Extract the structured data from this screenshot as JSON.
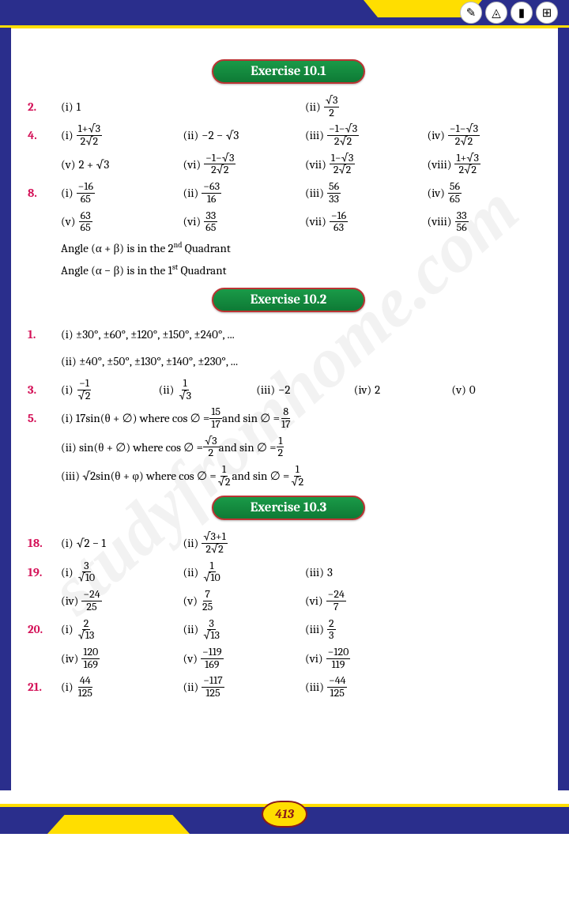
{
  "page_number": "413",
  "watermark": "studyfromhome.com",
  "top_icons": [
    "✏️",
    "📐",
    "🧮",
    "🧮"
  ],
  "sections": [
    {
      "title": "Exercise 10.1",
      "rows": [
        {
          "n": "2.",
          "cols": 2,
          "items": [
            [
              "(i)",
              "1"
            ],
            [
              "(ii)",
              {
                "frac": [
                  "√3",
                  "2"
                ]
              }
            ]
          ]
        },
        {
          "n": "4.",
          "cols": 4,
          "items": [
            [
              "(i)",
              {
                "frac": [
                  "1+√3",
                  "2√2"
                ]
              }
            ],
            [
              "(ii)",
              "−2 − √3"
            ],
            [
              "(iii)",
              {
                "frac": [
                  "−1−√3",
                  "2√2"
                ]
              }
            ],
            [
              "(iv)",
              {
                "frac": [
                  "−1−√3",
                  "2√2"
                ]
              }
            ],
            [
              "(v)",
              "2 + √3"
            ],
            [
              "(vi)",
              {
                "frac": [
                  "−1−√3",
                  "2√2"
                ]
              }
            ],
            [
              "(vii)",
              {
                "frac": [
                  "1−√3",
                  "2√2"
                ]
              }
            ],
            [
              "(viii)",
              {
                "frac": [
                  "1+√3",
                  "2√2"
                ]
              }
            ]
          ]
        },
        {
          "n": "8.",
          "cols": 4,
          "items": [
            [
              "(i)",
              {
                "frac": [
                  "−16",
                  "65"
                ]
              }
            ],
            [
              "(ii)",
              {
                "frac": [
                  "−63",
                  "16"
                ]
              }
            ],
            [
              "(iii)",
              {
                "frac": [
                  "56",
                  "33"
                ]
              }
            ],
            [
              "(iv)",
              {
                "frac": [
                  "56",
                  "65"
                ]
              }
            ],
            [
              "(v)",
              {
                "frac": [
                  "63",
                  "65"
                ]
              }
            ],
            [
              "(vi)",
              {
                "frac": [
                  "33",
                  "65"
                ]
              }
            ],
            [
              "(vii)",
              {
                "frac": [
                  "−16",
                  "63"
                ]
              }
            ],
            [
              "(viii)",
              {
                "frac": [
                  "33",
                  "56"
                ]
              }
            ]
          ]
        }
      ],
      "notes": [
        "Angle (α + β) is in the 2<sup>nd</sup> Quadrant",
        "Angle (α − β) is in the 1<sup>st</sup> Quadrant"
      ]
    },
    {
      "title": "Exercise 10.2",
      "rows": [
        {
          "n": "1.",
          "cols": 1,
          "items": [
            [
              "",
              "(i) ±30°, ±60°, ±120°, ±150°, ±240°, ..."
            ],
            [
              "",
              "(ii) ±40°, ±50°, ±130°, ±140°, ±230°, ..."
            ]
          ]
        },
        {
          "n": "3.",
          "cols": 5,
          "items": [
            [
              "(i)",
              {
                "frac": [
                  "−1",
                  "√2"
                ]
              }
            ],
            [
              "(ii)",
              {
                "frac": [
                  "1",
                  "√3"
                ]
              }
            ],
            [
              "(iii)",
              "−2"
            ],
            [
              "(iv)",
              "2"
            ],
            [
              "(v)",
              "0"
            ]
          ]
        },
        {
          "n": "5.",
          "cols": 1,
          "items": [
            [
              "",
              "(i) 17sin(θ + ∅) where cos ∅ = ",
              {
                "frac": [
                  "15",
                  "17"
                ]
              },
              " and sin ∅ = ",
              {
                "frac": [
                  "8",
                  "17"
                ]
              }
            ],
            [
              "",
              "(ii) sin(θ + ∅)  where cos ∅ = ",
              {
                "frac": [
                  "√3",
                  "2"
                ]
              },
              " and sin ∅ = ",
              {
                "frac": [
                  "1",
                  "2"
                ]
              }
            ],
            [
              "",
              "(iii) √2sin(θ + φ) where cos ∅ = ",
              {
                "frac": [
                  "1",
                  "√2"
                ]
              },
              " and sin ∅ = ",
              {
                "frac": [
                  "1",
                  "√2"
                ]
              }
            ]
          ]
        }
      ]
    },
    {
      "title": "Exercise 10.3",
      "rows": [
        {
          "n": "18.",
          "cols": 4,
          "items": [
            [
              "(i)",
              "√2 − 1"
            ],
            [
              "(ii)",
              {
                "frac": [
                  "√3+1",
                  "2√2"
                ]
              }
            ]
          ]
        },
        {
          "n": "19.",
          "cols": 4,
          "items": [
            [
              "(i)",
              {
                "frac": [
                  "3",
                  "√10"
                ]
              }
            ],
            [
              "(ii)",
              {
                "frac": [
                  "1",
                  "√10"
                ]
              }
            ],
            [
              "(iii)",
              "3"
            ],
            [
              ""
            ],
            [
              "(iv)",
              {
                "frac": [
                  "−24",
                  "25"
                ]
              }
            ],
            [
              "(v)",
              {
                "frac": [
                  "7",
                  "25"
                ]
              }
            ],
            [
              "(vi)",
              {
                "frac": [
                  "−24",
                  "7"
                ]
              }
            ]
          ]
        },
        {
          "n": "20.",
          "cols": 4,
          "items": [
            [
              "(i)",
              {
                "frac": [
                  "2",
                  "√13"
                ]
              }
            ],
            [
              "(ii)",
              {
                "frac": [
                  "3",
                  "√13"
                ]
              }
            ],
            [
              "(iii)",
              {
                "frac": [
                  "2",
                  "3"
                ]
              }
            ],
            [
              ""
            ],
            [
              "(iv)",
              {
                "frac": [
                  "120",
                  "169"
                ]
              }
            ],
            [
              "(v)",
              {
                "frac": [
                  "−119",
                  "169"
                ]
              }
            ],
            [
              "(vi)",
              {
                "frac": [
                  "−120",
                  "119"
                ]
              }
            ]
          ]
        },
        {
          "n": "21.",
          "cols": 4,
          "items": [
            [
              "(i)",
              {
                "frac": [
                  "44",
                  "125"
                ]
              }
            ],
            [
              "(ii)",
              {
                "frac": [
                  "−117",
                  "125"
                ]
              }
            ],
            [
              "(iii)",
              {
                "frac": [
                  "−44",
                  "125"
                ]
              }
            ]
          ]
        }
      ]
    }
  ]
}
